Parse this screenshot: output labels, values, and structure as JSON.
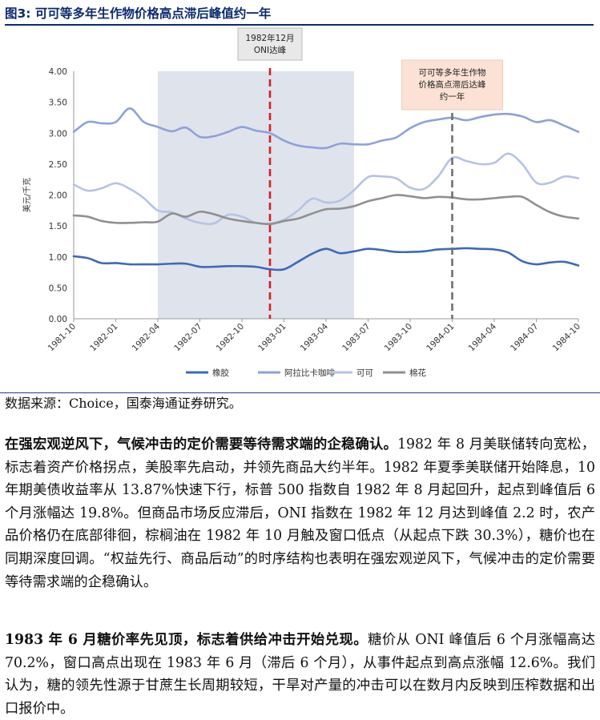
{
  "figure": {
    "title": "图3:  可可等多年生作物价格高点滞后峰值约一年",
    "annotation_oni": [
      "1982年12月",
      "ONI达峰"
    ],
    "annotation_lag": [
      "可可等多年生作物",
      "价格高点滞后达峰",
      "约一年"
    ],
    "source": "数据来源：Choice，国泰海通证券研究。"
  },
  "chart_data": {
    "type": "line",
    "ylabel": "美元/千克",
    "ylim": [
      0,
      4
    ],
    "yticks": [
      "0.00",
      "0.50",
      "1.00",
      "1.50",
      "2.00",
      "2.50",
      "3.00",
      "3.50",
      "4.00"
    ],
    "x_tick_labels": [
      "1981-10",
      "1982-01",
      "1982-04",
      "1982-07",
      "1982-10",
      "1983-01",
      "1983-04",
      "1983-07",
      "1983-10",
      "1984-01",
      "1984-04",
      "1984-07",
      "1984-10"
    ],
    "x_months": [
      "1981-10",
      "1981-11",
      "1981-12",
      "1982-01",
      "1982-02",
      "1982-03",
      "1982-04",
      "1982-05",
      "1982-06",
      "1982-07",
      "1982-08",
      "1982-09",
      "1982-10",
      "1982-11",
      "1982-12",
      "1983-01",
      "1983-02",
      "1983-03",
      "1983-04",
      "1983-05",
      "1983-06",
      "1983-07",
      "1983-08",
      "1983-09",
      "1983-10",
      "1983-11",
      "1983-12",
      "1984-01",
      "1984-02",
      "1984-03",
      "1984-04",
      "1984-05",
      "1984-06",
      "1984-07",
      "1984-08",
      "1984-09",
      "1984-10"
    ],
    "shaded_range": [
      "1982-04",
      "1983-06"
    ],
    "vlines": [
      {
        "x": "1982-12",
        "color": "#d42020",
        "style": "dashed"
      },
      {
        "x": "1984-01",
        "color": "#707070",
        "style": "dashed"
      }
    ],
    "series": [
      {
        "name": "橡胶",
        "color": "#3f69b8",
        "values": [
          1.01,
          0.98,
          0.9,
          0.9,
          0.88,
          0.88,
          0.88,
          0.89,
          0.89,
          0.84,
          0.84,
          0.85,
          0.85,
          0.84,
          0.8,
          0.8,
          0.92,
          1.05,
          1.13,
          1.06,
          1.09,
          1.13,
          1.11,
          1.08,
          1.08,
          1.09,
          1.12,
          1.13,
          1.14,
          1.13,
          1.12,
          1.07,
          0.93,
          0.88,
          0.91,
          0.92,
          0.86
        ]
      },
      {
        "name": "阿拉比卡咖啡",
        "color": "#8ea1da",
        "values": [
          3.02,
          3.18,
          3.16,
          3.18,
          3.4,
          3.18,
          3.1,
          3.03,
          3.09,
          2.94,
          2.95,
          3.02,
          3.1,
          3.04,
          3.0,
          2.88,
          2.8,
          2.77,
          2.76,
          2.83,
          2.82,
          2.82,
          2.88,
          2.93,
          3.08,
          3.18,
          3.22,
          3.25,
          3.21,
          3.26,
          3.3,
          3.31,
          3.27,
          3.18,
          3.21,
          3.12,
          3.02
        ]
      },
      {
        "name": "可可",
        "color": "#b6c2e6",
        "values": [
          2.17,
          2.07,
          2.11,
          2.19,
          2.1,
          1.95,
          1.75,
          1.72,
          1.62,
          1.55,
          1.54,
          1.68,
          1.65,
          1.55,
          1.54,
          1.6,
          1.75,
          1.94,
          1.88,
          1.91,
          2.08,
          2.29,
          2.3,
          2.27,
          2.12,
          2.1,
          2.3,
          2.6,
          2.55,
          2.5,
          2.52,
          2.67,
          2.5,
          2.2,
          2.2,
          2.3,
          2.27
        ]
      },
      {
        "name": "棉花",
        "color": "#909090",
        "values": [
          1.67,
          1.65,
          1.58,
          1.55,
          1.55,
          1.56,
          1.57,
          1.7,
          1.65,
          1.73,
          1.69,
          1.62,
          1.58,
          1.55,
          1.53,
          1.58,
          1.62,
          1.7,
          1.77,
          1.78,
          1.82,
          1.9,
          1.95,
          2.0,
          1.98,
          1.95,
          1.97,
          1.96,
          1.93,
          1.93,
          1.95,
          1.97,
          1.97,
          1.84,
          1.72,
          1.65,
          1.62
        ]
      }
    ]
  },
  "paragraphs": [
    {
      "bold": "在强宏观逆风下，气候冲击的定价需要等待需求端的企稳确认。",
      "text": "1982 年 8 月美联储转向宽松，标志着资产价格拐点，美股率先启动，并领先商品大约半年。1982 年夏季美联储开始降息，10 年期美债收益率从 13.87%快速下行，标普 500 指数自 1982 年 8 月起回升，起点到峰值后 6 个月涨幅达 19.8%。但商品市场反应滞后，ONI 指数在 1982 年 12 月达到峰值 2.2 时，农产品价格仍在底部徘徊，棕榈油在 1982 年 10 月触及窗口低点（从起点下跌 30.3%），糖价也在同期深度回调。“权益先行、商品后动”的时序结构也表明在强宏观逆风下，气候冲击的定价需要等待需求端的企稳确认。"
    },
    {
      "bold": "1983 年 6 月糖价率先见顶，标志着供给冲击开始兑现。",
      "text": "糖价从 ONI 峰值后 6 个月涨幅高达 70.2%，窗口高点出现在 1983 年 6 月（滞后 6 个月），从事件起点到高点涨幅 12.6%。我们认为，糖的领先性源于甘蔗生长周期较短，干旱对产量的冲击可以在数月内反映到压榨数据和出口报价中。"
    }
  ]
}
